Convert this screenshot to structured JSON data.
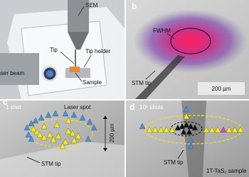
{
  "panel_a": {
    "labels": [
      "SEM",
      "Tip",
      "Tip holder",
      "Laser beam",
      "Sample"
    ]
  },
  "panel_b": {
    "letter": "b",
    "labels": [
      "FWHM",
      "STM tip"
    ],
    "scale": "200 µm"
  },
  "panel_c": {
    "letter": "c",
    "caption": "1 shot",
    "labels": [
      "Laser spot",
      "STM tip"
    ],
    "scale": "200 µm"
  },
  "panel_d": {
    "letter": "d",
    "caption": "10⁶ shots",
    "labels": [
      "STM tip",
      "1T-TaS₂ sample"
    ]
  }
}
